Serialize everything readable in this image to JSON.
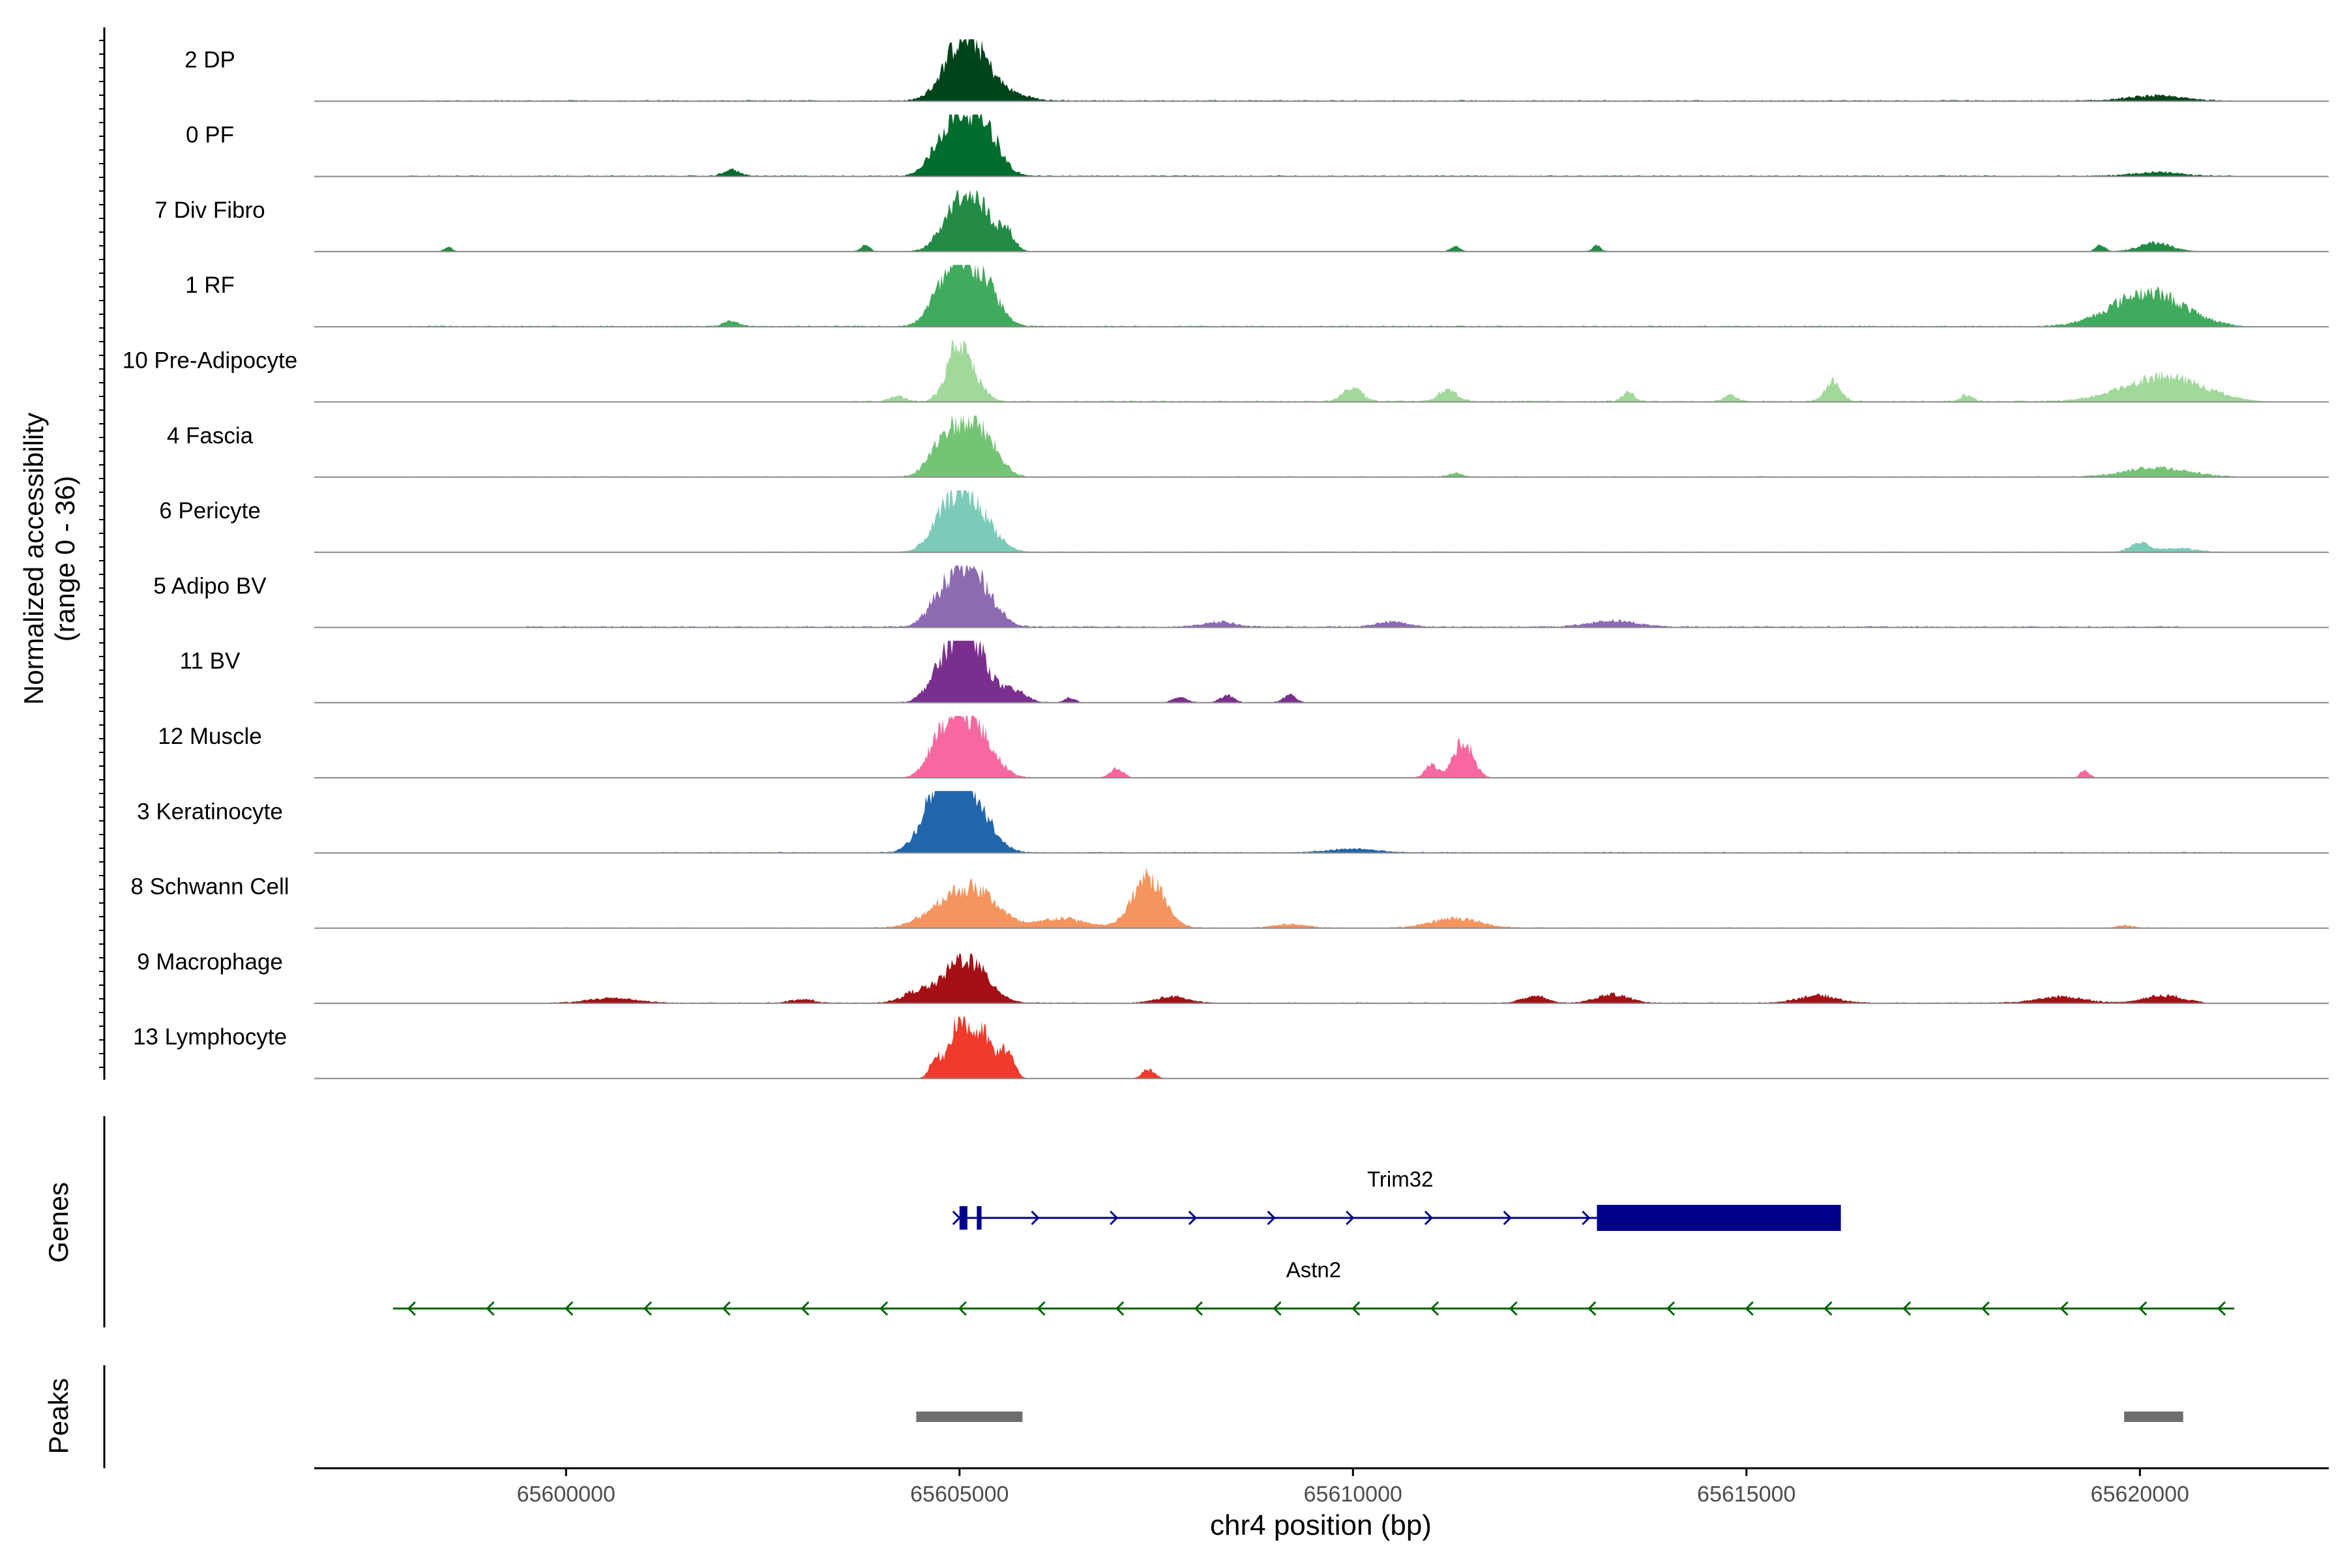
{
  "chart_data": {
    "type": "area",
    "title": "",
    "chrom": "chr4",
    "xlabel": "chr4 position (bp)",
    "ylabel": "Normalized accessibility",
    "ylabel_range": "(range 0 - 36)",
    "ylim": [
      0,
      36
    ],
    "xlim": [
      65596800,
      65622400
    ],
    "xticks": [
      65600000,
      65605000,
      65610000,
      65615000,
      65620000
    ],
    "xtick_labels": [
      "65600000",
      "65605000",
      "65610000",
      "65615000",
      "65620000"
    ],
    "tracks": [
      {
        "name": "2 DP",
        "color": "#00441b",
        "peaks": [
          [
            65605000,
            80,
            220
          ],
          [
            65605250,
            40,
            200
          ],
          [
            65605600,
            12,
            250
          ],
          [
            65620200,
            8,
            350
          ]
        ],
        "noise": [
          65598000,
          65621200,
          1.0
        ]
      },
      {
        "name": "0 PF",
        "color": "#006d2c",
        "peaks": [
          [
            65605000,
            95,
            220
          ],
          [
            65605350,
            60,
            180
          ],
          [
            65604700,
            15,
            150
          ],
          [
            65602100,
            10,
            100
          ],
          [
            65620200,
            6,
            300
          ]
        ],
        "noise": [
          65598000,
          65621200,
          1.0
        ]
      },
      {
        "name": "7 Div Fibro",
        "color": "#238b45",
        "peaks": [
          [
            65605000,
            85,
            200
          ],
          [
            65605300,
            48,
            160
          ],
          [
            65605600,
            30,
            100
          ],
          [
            65603800,
            10,
            60
          ],
          [
            65598500,
            8,
            50
          ],
          [
            65611300,
            8,
            60
          ],
          [
            65613100,
            10,
            50
          ],
          [
            65620200,
            14,
            200
          ],
          [
            65619500,
            10,
            60
          ]
        ],
        "noise": [
          65598500,
          65620800,
          0.5
        ]
      },
      {
        "name": "1 RF",
        "color": "#41ab5d",
        "peaks": [
          [
            65605000,
            90,
            220
          ],
          [
            65605350,
            50,
            180
          ],
          [
            65604700,
            20,
            150
          ],
          [
            65620100,
            55,
            450
          ],
          [
            65602100,
            8,
            100
          ]
        ],
        "noise": [
          65598000,
          65621200,
          1.0
        ]
      },
      {
        "name": "10 Pre-Adipocyte",
        "color": "#a1d99b",
        "peaks": [
          [
            65605000,
            95,
            150
          ],
          [
            65605300,
            12,
            100
          ],
          [
            65604200,
            8,
            100
          ],
          [
            65610000,
            22,
            120
          ],
          [
            65611200,
            18,
            120
          ],
          [
            65616100,
            32,
            100
          ],
          [
            65613500,
            14,
            80
          ],
          [
            65620300,
            40,
            500
          ],
          [
            65614800,
            10,
            80
          ],
          [
            65617800,
            10,
            80
          ]
        ],
        "noise": [
          65603500,
          65621200,
          1.2
        ]
      },
      {
        "name": "4 Fascia",
        "color": "#74c476",
        "peaks": [
          [
            65605000,
            80,
            220
          ],
          [
            65605350,
            45,
            180
          ],
          [
            65604700,
            20,
            150
          ],
          [
            65620200,
            15,
            400
          ],
          [
            65611300,
            6,
            80
          ]
        ],
        "noise": [
          65598000,
          65621200,
          0.8
        ]
      },
      {
        "name": "6 Pericyte",
        "color": "#7ccbb8",
        "peaks": [
          [
            65605000,
            95,
            200
          ],
          [
            65605350,
            35,
            180
          ],
          [
            65604700,
            20,
            150
          ],
          [
            65620000,
            15,
            120
          ],
          [
            65620500,
            6,
            200
          ]
        ],
        "noise": [
          65602000,
          65621200,
          0.8
        ]
      },
      {
        "name": "5 Adipo BV",
        "color": "#8c6bb1",
        "peaks": [
          [
            65605000,
            80,
            200
          ],
          [
            65605300,
            45,
            200
          ],
          [
            65604700,
            25,
            150
          ],
          [
            65608300,
            8,
            200
          ],
          [
            65613300,
            10,
            300
          ],
          [
            65610500,
            8,
            200
          ]
        ],
        "noise": [
          65599500,
          65620500,
          1.2
        ]
      },
      {
        "name": "11 BV",
        "color": "#7a2f8e",
        "peaks": [
          [
            65605000,
            95,
            180
          ],
          [
            65605250,
            55,
            180
          ],
          [
            65604700,
            30,
            150
          ],
          [
            65605700,
            18,
            150
          ],
          [
            65608400,
            12,
            80
          ],
          [
            65609200,
            12,
            80
          ],
          [
            65607800,
            10,
            80
          ],
          [
            65606400,
            8,
            60
          ]
        ],
        "noise": [
          65603700,
          65609300,
          0.6
        ]
      },
      {
        "name": "12 Muscle",
        "color": "#f768a1",
        "peaks": [
          [
            65605000,
            85,
            200
          ],
          [
            65605300,
            45,
            200
          ],
          [
            65604700,
            35,
            150
          ],
          [
            65611400,
            60,
            120
          ],
          [
            65611000,
            20,
            80
          ],
          [
            65607000,
            15,
            80
          ],
          [
            65619300,
            12,
            60
          ]
        ],
        "noise": [
          65604500,
          65616000,
          0.6
        ]
      },
      {
        "name": "3 Keratinocyte",
        "color": "#2166ac",
        "peaks": [
          [
            65605000,
            100,
            200
          ],
          [
            65604700,
            80,
            200
          ],
          [
            65605300,
            40,
            200
          ],
          [
            65610000,
            6,
            300
          ]
        ],
        "noise": [
          65601200,
          65621200,
          0.9
        ]
      },
      {
        "name": "8 Schwann Cell",
        "color": "#f4945e",
        "peaks": [
          [
            65604900,
            45,
            300
          ],
          [
            65605300,
            40,
            250
          ],
          [
            65607400,
            80,
            200
          ],
          [
            65606300,
            15,
            300
          ],
          [
            65611300,
            15,
            300
          ],
          [
            65609200,
            6,
            200
          ],
          [
            65619800,
            4,
            100
          ]
        ],
        "noise": [
          65599500,
          65620600,
          0.8
        ]
      },
      {
        "name": "9 Macrophage",
        "color": "#a50f15",
        "peaks": [
          [
            65605000,
            60,
            200
          ],
          [
            65605300,
            30,
            200
          ],
          [
            65604500,
            20,
            200
          ],
          [
            65607700,
            10,
            200
          ],
          [
            65612300,
            12,
            150
          ],
          [
            65613300,
            14,
            200
          ],
          [
            65615900,
            12,
            250
          ],
          [
            65620300,
            12,
            250
          ],
          [
            65600600,
            8,
            300
          ],
          [
            65619000,
            10,
            300
          ],
          [
            65603000,
            6,
            150
          ]
        ],
        "noise": [
          65599800,
          65620800,
          0.8
        ]
      },
      {
        "name": "13 Lymphocyte",
        "color": "#ef3b2c",
        "peaks": [
          [
            65605000,
            100,
            120
          ],
          [
            65605300,
            70,
            120
          ],
          [
            65605600,
            45,
            90
          ],
          [
            65604700,
            30,
            80
          ],
          [
            65607400,
            15,
            80
          ]
        ],
        "noise": [
          65604400,
          65607500,
          0.0
        ]
      }
    ],
    "genes_label": "Genes",
    "genes": [
      {
        "name": "Trim32",
        "color": "#00008b",
        "strand": "+",
        "start": 65605000,
        "end": 65616200,
        "exons": [
          [
            65605000,
            65605100
          ],
          [
            65605220,
            65605280
          ],
          [
            65613100,
            65616200
          ]
        ]
      },
      {
        "name": "Astn2",
        "color": "#006400",
        "strand": "-",
        "start": 65597800,
        "end": 65621200,
        "exons": []
      }
    ],
    "peaks_label": "Peaks",
    "peak_regions": [
      [
        65604450,
        65605800
      ],
      [
        65619800,
        65620550
      ]
    ]
  }
}
